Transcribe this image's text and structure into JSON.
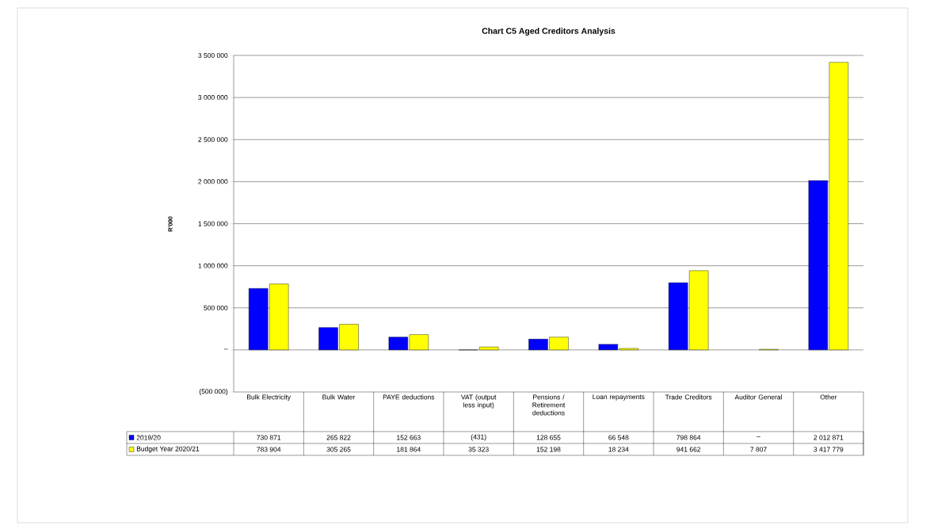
{
  "chart_data": {
    "type": "bar",
    "title": "Chart C5 Aged Creditors Analysis",
    "ylabel": "R'000",
    "categories": [
      "Bulk Electricity",
      "Bulk Water",
      "PAYE deductions",
      "VAT (output less input)",
      "Pensions / Retirement deductions",
      "Loan repayments",
      "Trade Creditors",
      "Auditor General",
      "Other"
    ],
    "series": [
      {
        "name": "2019/20",
        "color": "#0000ff",
        "values": [
          730871,
          265822,
          152663,
          -431,
          128655,
          66548,
          798864,
          null,
          2012871
        ],
        "value_labels": [
          "730 871",
          "265 822",
          "152 663",
          "(431)",
          "128 655",
          "66 548",
          "798 864",
          "–",
          "2 012 871"
        ]
      },
      {
        "name": "Budget Year 2020/21",
        "color": "#ffff00",
        "values": [
          783904,
          305265,
          181864,
          35323,
          152198,
          18234,
          941662,
          7807,
          3417779
        ],
        "value_labels": [
          "783 904",
          "305 265",
          "181 864",
          "35 323",
          "152 198",
          "18 234",
          "941 662",
          "7 807",
          "3 417 779"
        ]
      }
    ],
    "ylim": [
      -500000,
      3500000
    ],
    "yticks": [
      {
        "value": -500000,
        "label": "(500 000)"
      },
      {
        "value": 0,
        "label": "–"
      },
      {
        "value": 500000,
        "label": "500 000"
      },
      {
        "value": 1000000,
        "label": "1 000 000"
      },
      {
        "value": 1500000,
        "label": "1 500 000"
      },
      {
        "value": 2000000,
        "label": "2 000 000"
      },
      {
        "value": 2500000,
        "label": "2 500 000"
      },
      {
        "value": 3000000,
        "label": "3 000 000"
      },
      {
        "value": 3500000,
        "label": "3 500 000"
      }
    ],
    "grid": "y",
    "legend": "bottom"
  }
}
